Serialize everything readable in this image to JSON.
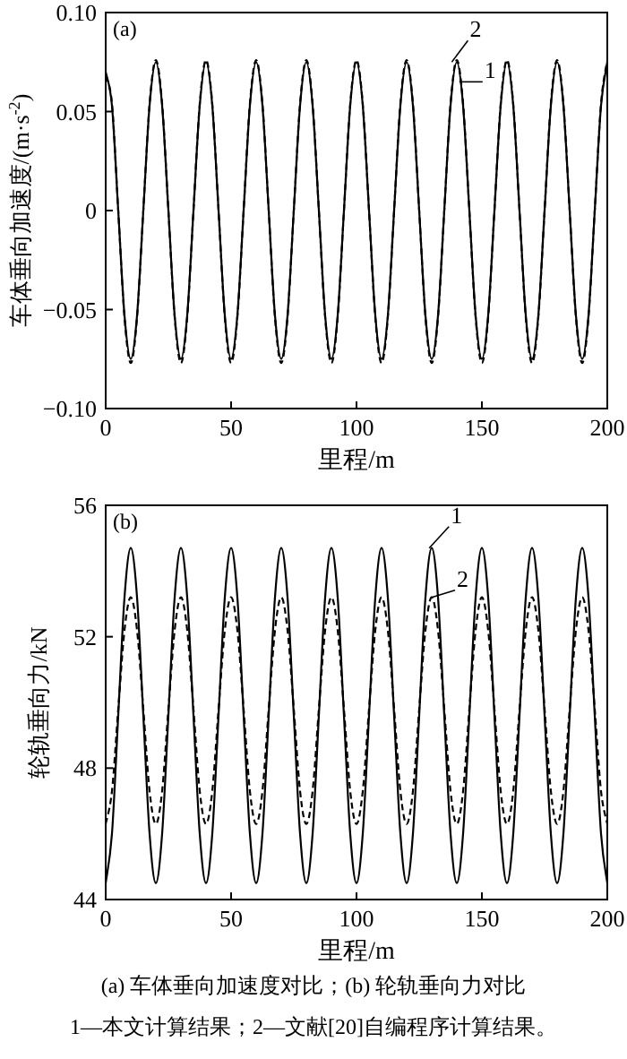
{
  "chart_data": [
    {
      "type": "line",
      "title": "(a)",
      "xlabel": "里程/m",
      "ylabel": "车体垂向加速度/(m·s$^{-2}$)",
      "xlim": [
        0,
        200
      ],
      "ylim": [
        -0.1,
        0.1
      ],
      "xticks": [
        0,
        50,
        100,
        150,
        200
      ],
      "yticks": [
        {
          "value": -0.1,
          "label": "−0.10"
        },
        {
          "value": -0.05,
          "label": "−0.05"
        },
        0,
        {
          "value": 0.05,
          "label": "0.05"
        },
        {
          "value": 0.1,
          "label": "0.10"
        }
      ],
      "grid": false,
      "x": [
        0,
        2.5,
        5,
        7.5,
        10,
        12.5,
        15,
        17.5,
        20,
        22.5,
        25,
        27.5,
        30,
        32.5,
        35,
        37.5,
        40,
        42.5,
        45,
        47.5,
        50,
        52.5,
        55,
        57.5,
        60,
        62.5,
        65,
        67.5,
        70,
        72.5,
        75,
        77.5,
        80,
        82.5,
        85,
        87.5,
        90,
        92.5,
        95,
        97.5,
        100,
        102.5,
        105,
        107.5,
        110,
        112.5,
        115,
        117.5,
        120,
        122.5,
        125,
        127.5,
        130,
        132.5,
        135,
        137.5,
        140,
        142.5,
        145,
        147.5,
        150,
        152.5,
        155,
        157.5,
        160,
        162.5,
        165,
        167.5,
        170,
        172.5,
        175,
        177.5,
        180,
        182.5,
        185,
        187.5,
        190,
        192.5,
        195,
        197.5,
        200
      ],
      "series": [
        {
          "color": "#000000",
          "line_style": "solid",
          "values": [
            0.07,
            0.053,
            0,
            -0.053,
            -0.075,
            -0.053,
            0,
            0.053,
            0.075,
            0.053,
            0,
            -0.053,
            -0.075,
            -0.053,
            0,
            0.053,
            0.075,
            0.053,
            0,
            -0.053,
            -0.075,
            -0.053,
            0,
            0.053,
            0.075,
            0.053,
            0,
            -0.053,
            -0.075,
            -0.053,
            0,
            0.053,
            0.075,
            0.053,
            0,
            -0.053,
            -0.075,
            -0.053,
            0,
            0.053,
            0.075,
            0.053,
            0,
            -0.053,
            -0.075,
            -0.053,
            0,
            0.053,
            0.075,
            0.053,
            0,
            -0.053,
            -0.075,
            -0.053,
            0,
            0.053,
            0.075,
            0.053,
            0,
            -0.053,
            -0.075,
            -0.053,
            0,
            0.053,
            0.075,
            0.053,
            0,
            -0.053,
            -0.075,
            -0.053,
            0,
            0.053,
            0.075,
            0.053,
            0,
            -0.053,
            -0.075,
            -0.053,
            0,
            0.053,
            0.075
          ]
        },
        {
          "color": "#000000",
          "line_style": "dashed",
          "values": [
            0.068,
            0.054,
            0,
            -0.054,
            -0.077,
            -0.054,
            0,
            0.054,
            0.076,
            0.054,
            0,
            -0.054,
            -0.077,
            -0.054,
            0,
            0.054,
            0.076,
            0.054,
            0,
            -0.054,
            -0.077,
            -0.054,
            0,
            0.054,
            0.076,
            0.054,
            0,
            -0.054,
            -0.077,
            -0.054,
            0,
            0.054,
            0.076,
            0.054,
            0,
            -0.054,
            -0.077,
            -0.054,
            0,
            0.054,
            0.076,
            0.054,
            0,
            -0.054,
            -0.077,
            -0.054,
            0,
            0.054,
            0.076,
            0.054,
            0,
            -0.054,
            -0.077,
            -0.054,
            0,
            0.054,
            0.076,
            0.054,
            0,
            -0.054,
            -0.077,
            -0.054,
            0,
            0.054,
            0.076,
            0.054,
            0,
            -0.054,
            -0.077,
            -0.054,
            0,
            0.054,
            0.076,
            0.054,
            0,
            -0.054,
            -0.077,
            -0.054,
            0,
            0.054,
            0.076
          ]
        }
      ],
      "annotations": [
        {
          "text": "2",
          "x": 138,
          "y": 0.075
        },
        {
          "text": "1",
          "x": 141,
          "y": 0.065
        }
      ]
    },
    {
      "type": "line",
      "title": "(b)",
      "xlabel": "里程/m",
      "ylabel": "轮轨垂向力/kN",
      "xlim": [
        0,
        200
      ],
      "ylim": [
        44,
        56
      ],
      "xticks": [
        0,
        50,
        100,
        150,
        200
      ],
      "yticks": [
        44,
        48,
        52,
        56
      ],
      "grid": false,
      "x": [
        0,
        2.5,
        5,
        7.5,
        10,
        12.5,
        15,
        17.5,
        20,
        22.5,
        25,
        27.5,
        30,
        32.5,
        35,
        37.5,
        40,
        42.5,
        45,
        47.5,
        50,
        52.5,
        55,
        57.5,
        60,
        62.5,
        65,
        67.5,
        70,
        72.5,
        75,
        77.5,
        80,
        82.5,
        85,
        87.5,
        90,
        92.5,
        95,
        97.5,
        100,
        102.5,
        105,
        107.5,
        110,
        112.5,
        115,
        117.5,
        120,
        122.5,
        125,
        127.5,
        130,
        132.5,
        135,
        137.5,
        140,
        142.5,
        145,
        147.5,
        150,
        152.5,
        155,
        157.5,
        160,
        162.5,
        165,
        167.5,
        170,
        172.5,
        175,
        177.5,
        180,
        182.5,
        185,
        187.5,
        190,
        192.5,
        195,
        197.5,
        200
      ],
      "series": [
        {
          "color": "#000000",
          "line_style": "solid",
          "values": [
            44.5,
            46.0,
            49.6,
            53.2,
            54.7,
            53.2,
            49.6,
            46.0,
            44.5,
            46.0,
            49.6,
            53.2,
            54.7,
            53.2,
            49.6,
            46.0,
            44.5,
            46.0,
            49.6,
            53.2,
            54.7,
            53.2,
            49.6,
            46.0,
            44.5,
            46.0,
            49.6,
            53.2,
            54.7,
            53.2,
            49.6,
            46.0,
            44.5,
            46.0,
            49.6,
            53.2,
            54.7,
            53.2,
            49.6,
            46.0,
            44.5,
            46.0,
            49.6,
            53.2,
            54.7,
            53.2,
            49.6,
            46.0,
            44.5,
            46.0,
            49.6,
            53.2,
            54.7,
            53.2,
            49.6,
            46.0,
            44.5,
            46.0,
            49.6,
            53.2,
            54.7,
            53.2,
            49.6,
            46.0,
            44.5,
            46.0,
            49.6,
            53.2,
            54.7,
            53.2,
            49.6,
            46.0,
            44.5,
            46.0,
            49.6,
            53.2,
            54.7,
            53.2,
            49.6,
            46.0,
            44.5
          ]
        },
        {
          "color": "#000000",
          "line_style": "dashed",
          "values": [
            46.3,
            47.3,
            49.8,
            52.2,
            53.2,
            52.2,
            49.8,
            47.3,
            46.3,
            47.3,
            49.8,
            52.2,
            53.2,
            52.2,
            49.8,
            47.3,
            46.3,
            47.3,
            49.8,
            52.2,
            53.2,
            52.2,
            49.8,
            47.3,
            46.3,
            47.3,
            49.8,
            52.2,
            53.2,
            52.2,
            49.8,
            47.3,
            46.3,
            47.3,
            49.8,
            52.2,
            53.2,
            52.2,
            49.8,
            47.3,
            46.3,
            47.3,
            49.8,
            52.2,
            53.2,
            52.2,
            49.8,
            47.3,
            46.3,
            47.3,
            49.8,
            52.2,
            53.2,
            52.2,
            49.8,
            47.3,
            46.3,
            47.3,
            49.8,
            52.2,
            53.2,
            52.2,
            49.8,
            47.3,
            46.3,
            47.3,
            49.8,
            52.2,
            53.2,
            52.2,
            49.8,
            47.3,
            46.3,
            47.3,
            49.8,
            52.2,
            53.2,
            52.2,
            49.8,
            47.3,
            46.3
          ]
        }
      ],
      "annotations": [
        {
          "text": "1",
          "x": 129,
          "y": 54.7
        },
        {
          "text": "2",
          "x": 130,
          "y": 53.2
        },
        "(a) 车体垂向加速度对比；(b) 轮轨垂向力对比",
        "1—本文计算结果；2—文献[20]自编程序计算结果。"
      ]
    }
  ]
}
